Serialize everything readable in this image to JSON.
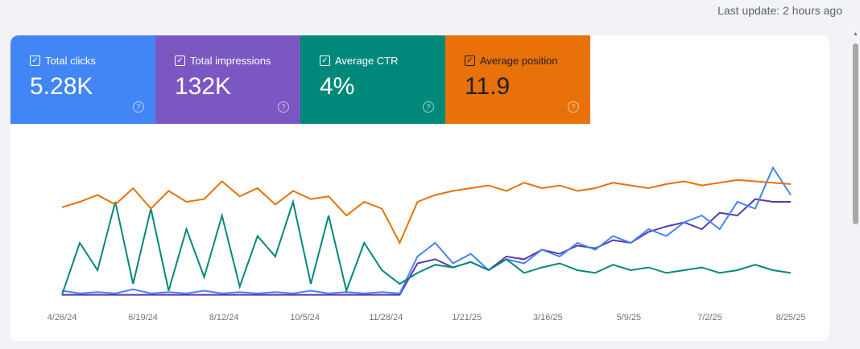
{
  "last_update": "Last update: 2 hours ago",
  "metrics": [
    {
      "label": "Total clicks",
      "value": "5.28K",
      "color": "#4285f4",
      "text_color": "#ffffff",
      "checked": true,
      "help_icon": "help-circle-icon"
    },
    {
      "label": "Total impressions",
      "value": "132K",
      "color": "#7b57c2",
      "text_color": "#ffffff",
      "checked": true,
      "help_icon": "help-circle-icon"
    },
    {
      "label": "Average CTR",
      "value": "4%",
      "color": "#00897b",
      "text_color": "#ffffff",
      "checked": true,
      "help_icon": "help-circle-icon"
    },
    {
      "label": "Average position",
      "value": "11.9",
      "color": "#e8710a",
      "text_color": "#202124",
      "checked": true,
      "help_icon": "help-circle-icon"
    }
  ],
  "chart_data": {
    "type": "line",
    "title": "",
    "xlabel": "",
    "ylabel": "",
    "x_ticks": [
      "4/26/24",
      "6/19/24",
      "8/12/24",
      "10/5/24",
      "11/28/24",
      "1/21/25",
      "3/16/25",
      "5/9/25",
      "7/2/25",
      "8/25/25"
    ],
    "x_range": [
      "4/26/24",
      "8/25/25"
    ],
    "y_scale": "independent per series, no axis shown (relative 0-100)",
    "grid": false,
    "legend": "metric tiles above chart",
    "series": [
      {
        "name": "Average position",
        "color": "#e8710a",
        "values": [
          66,
          70,
          75,
          68,
          80,
          65,
          78,
          70,
          72,
          85,
          74,
          80,
          68,
          78,
          72,
          74,
          60,
          70,
          65,
          40,
          70,
          75,
          78,
          80,
          82,
          78,
          84,
          80,
          82,
          78,
          80,
          84,
          82,
          80,
          83,
          85,
          82,
          84,
          86,
          85,
          84,
          83
        ]
      },
      {
        "name": "Average CTR",
        "color": "#00897b",
        "values": [
          2,
          40,
          20,
          70,
          10,
          65,
          5,
          50,
          15,
          60,
          8,
          45,
          30,
          70,
          10,
          60,
          5,
          40,
          20,
          10,
          18,
          24,
          22,
          26,
          20,
          28,
          18,
          22,
          25,
          20,
          18,
          24,
          20,
          22,
          18,
          20,
          22,
          18,
          20,
          24,
          20,
          18
        ]
      },
      {
        "name": "Total clicks",
        "color": "#4285f4",
        "values": [
          5,
          3,
          4,
          3,
          6,
          3,
          4,
          3,
          5,
          3,
          4,
          3,
          4,
          3,
          5,
          3,
          4,
          3,
          4,
          3,
          30,
          40,
          25,
          32,
          20,
          28,
          25,
          35,
          30,
          40,
          35,
          45,
          40,
          50,
          45,
          55,
          60,
          50,
          70,
          65,
          95,
          75
        ]
      },
      {
        "name": "Total impressions",
        "color": "#5e35b1",
        "values": [
          2,
          2,
          2,
          2,
          2,
          2,
          2,
          2,
          2,
          2,
          2,
          2,
          2,
          2,
          2,
          2,
          2,
          2,
          2,
          2,
          25,
          28,
          22,
          26,
          20,
          30,
          28,
          35,
          32,
          38,
          36,
          42,
          40,
          48,
          52,
          55,
          50,
          62,
          60,
          72,
          70,
          70
        ]
      }
    ]
  }
}
